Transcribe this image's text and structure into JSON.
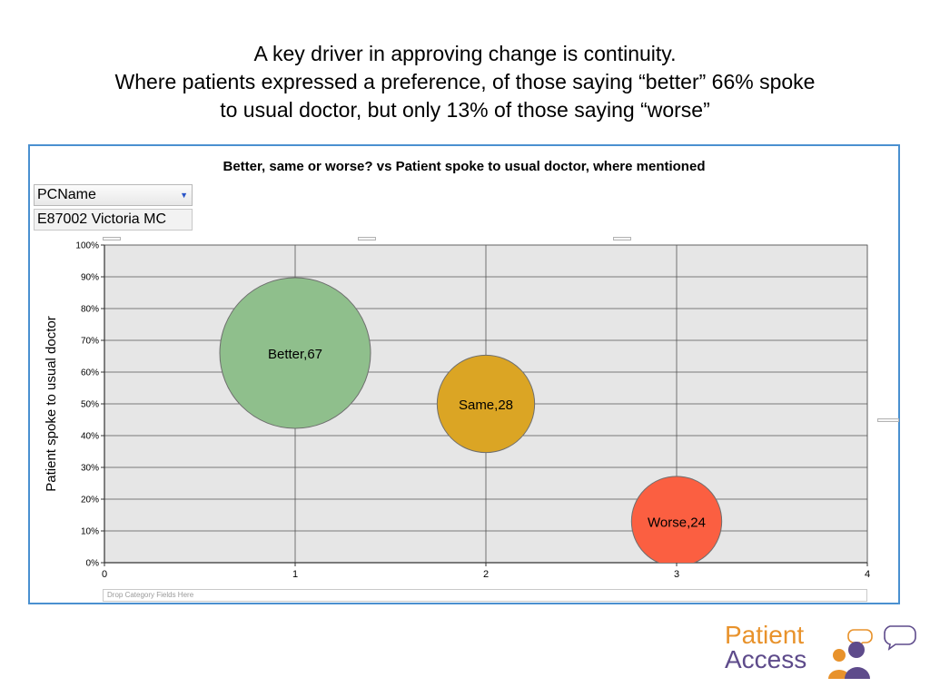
{
  "slide": {
    "title_lines": [
      "A key driver in approving change is continuity.",
      "Where patients expressed a preference, of those saying “better” 66% spoke",
      "to usual doctor, but only 13% of those saying “worse”"
    ]
  },
  "pivot": {
    "filter_label": "PCName",
    "filter_value": "E87002 Victoria MC",
    "drop_zone": "Drop Category Fields Here"
  },
  "chart_data": {
    "type": "scatter",
    "subtype": "bubble",
    "title": "Better, same or worse?  vs Patient spoke to usual doctor, where mentioned",
    "xlabel": "",
    "ylabel": "Patient spoke to usual doctor",
    "xlim": [
      0,
      4
    ],
    "ylim": [
      0,
      1
    ],
    "x_ticks": [
      "0",
      "1",
      "2",
      "3",
      "4"
    ],
    "y_ticks": [
      "0%",
      "10%",
      "20%",
      "30%",
      "40%",
      "50%",
      "60%",
      "70%",
      "80%",
      "90%",
      "100%"
    ],
    "grid": true,
    "plot_background": "#e6e6e6",
    "points": [
      {
        "label": "Better,67",
        "x": 1,
        "y": 0.66,
        "size": 67,
        "color": "#8fbf8c"
      },
      {
        "label": "Same,28",
        "x": 2,
        "y": 0.5,
        "size": 28,
        "color": "#dba524"
      },
      {
        "label": "Worse,24",
        "x": 3,
        "y": 0.13,
        "size": 24,
        "color": "#fb5f41"
      }
    ]
  },
  "logo": {
    "line1": "Patient",
    "line2": "Access",
    "colors": {
      "orange": "#e8922b",
      "purple": "#5e4b8b"
    }
  }
}
